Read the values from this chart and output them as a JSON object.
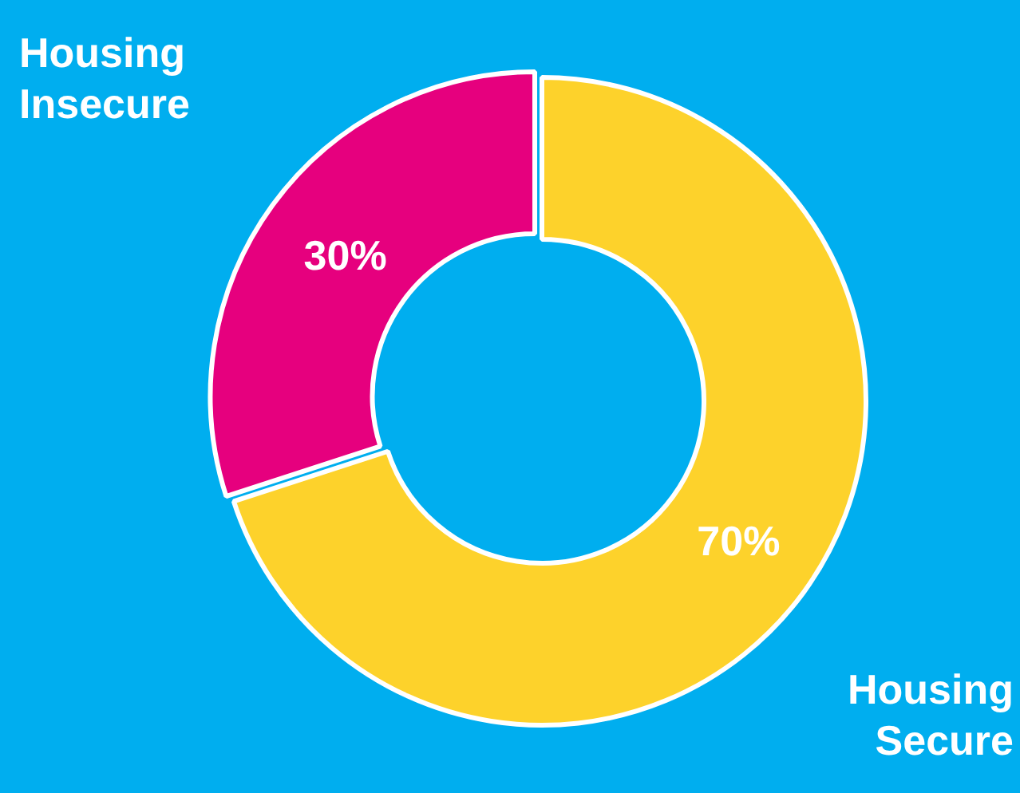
{
  "chart_data": {
    "type": "donut",
    "categories": [
      "Housing Secure",
      "Housing Insecure"
    ],
    "values": [
      70,
      30
    ],
    "colors": [
      "#fdd22b",
      "#e6007e"
    ],
    "value_labels": [
      "70%",
      "30%"
    ],
    "legend": false
  }
}
